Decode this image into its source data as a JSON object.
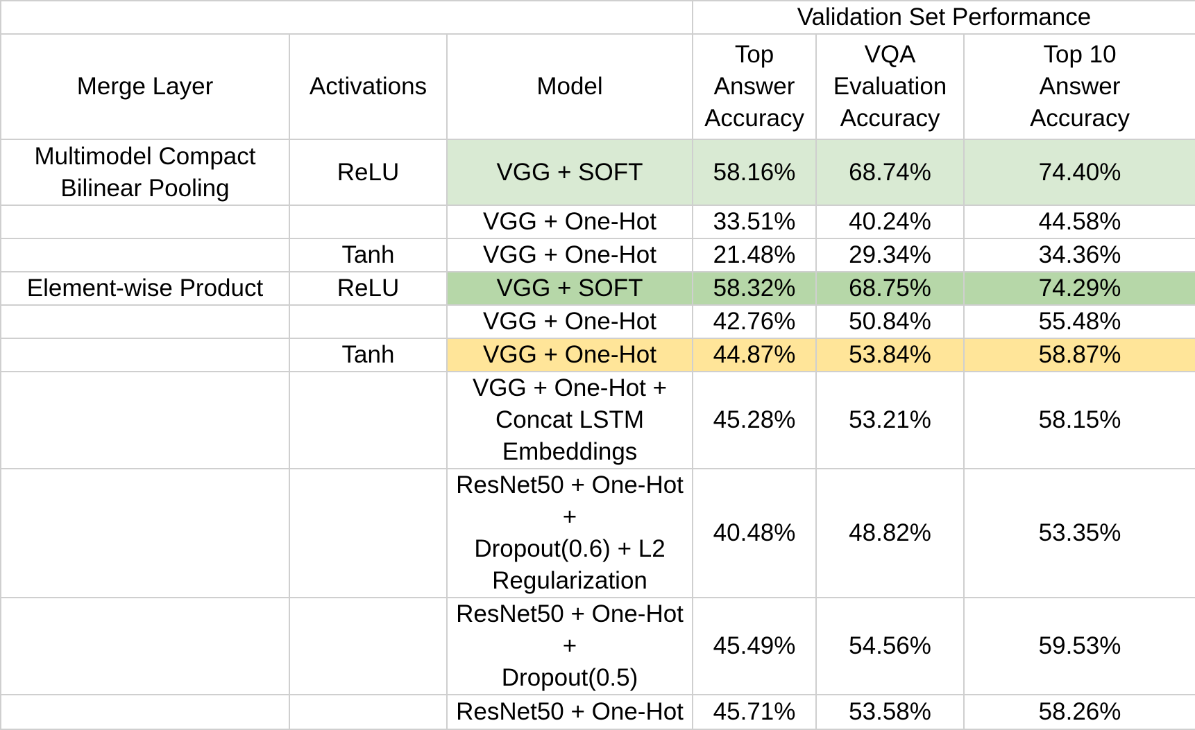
{
  "super_header": "Validation Set Performance",
  "columns": {
    "merge_layer": "Merge Layer",
    "activations": "Activations",
    "model": "Model",
    "top_answer": [
      "Top",
      "Answer",
      "Accuracy"
    ],
    "vqa_eval": [
      "VQA",
      "Evaluation",
      "Accuracy"
    ],
    "top10": [
      "Top 10",
      "Answer",
      "Accuracy"
    ]
  },
  "rows": [
    {
      "merge": [
        "Multimodel Compact",
        "Bilinear Pooling"
      ],
      "activation": "ReLU",
      "model": [
        "VGG + SOFT"
      ],
      "top": "58.16%",
      "vqa": "68.74%",
      "top10": "74.40%",
      "highlight": "light-green",
      "bold": [
        "top10"
      ]
    },
    {
      "merge": [],
      "activation": "",
      "model": [
        "VGG + One-Hot"
      ],
      "top": "33.51%",
      "vqa": "40.24%",
      "top10": "44.58%",
      "highlight": "none",
      "bold": []
    },
    {
      "merge": [],
      "activation": "Tanh",
      "model": [
        "VGG + One-Hot"
      ],
      "top": "21.48%",
      "vqa": "29.34%",
      "top10": "34.36%",
      "highlight": "none",
      "bold": []
    },
    {
      "merge": [
        "Element-wise Product"
      ],
      "activation": "ReLU",
      "model": [
        "VGG + SOFT"
      ],
      "top": "58.32%",
      "vqa": "68.75%",
      "top10": "74.29%",
      "highlight": "green",
      "bold": [
        "top",
        "vqa"
      ]
    },
    {
      "merge": [],
      "activation": "",
      "model": [
        "VGG + One-Hot"
      ],
      "top": "42.76%",
      "vqa": "50.84%",
      "top10": "55.48%",
      "highlight": "none",
      "bold": []
    },
    {
      "merge": [],
      "activation": "Tanh",
      "model": [
        "VGG + One-Hot"
      ],
      "top": "44.87%",
      "vqa": "53.84%",
      "top10": "58.87%",
      "highlight": "yellow",
      "bold": []
    },
    {
      "merge": [],
      "activation": "",
      "model": [
        "VGG + One-Hot +",
        "Concat LSTM",
        "Embeddings"
      ],
      "top": "45.28%",
      "vqa": "53.21%",
      "top10": "58.15%",
      "highlight": "none",
      "bold": []
    },
    {
      "merge": [],
      "activation": "",
      "model": [
        "ResNet50 + One-Hot +",
        "Dropout(0.6) + L2",
        "Regularization"
      ],
      "top": "40.48%",
      "vqa": "48.82%",
      "top10": "53.35%",
      "highlight": "none",
      "bold": []
    },
    {
      "merge": [],
      "activation": "",
      "model": [
        "ResNet50 + One-Hot +",
        "Dropout(0.5)"
      ],
      "top": "45.49%",
      "vqa": "54.56%",
      "top10": "59.53%",
      "highlight": "none",
      "bold": []
    },
    {
      "merge": [],
      "activation": "",
      "model": [
        "ResNet50 + One-Hot"
      ],
      "top": "45.71%",
      "vqa": "53.58%",
      "top10": "58.26%",
      "highlight": "none",
      "bold": []
    }
  ],
  "colors": {
    "light_green": "#d9ead3",
    "green": "#b6d7a8",
    "yellow": "#ffe599",
    "grid": "#cfcfcf"
  }
}
